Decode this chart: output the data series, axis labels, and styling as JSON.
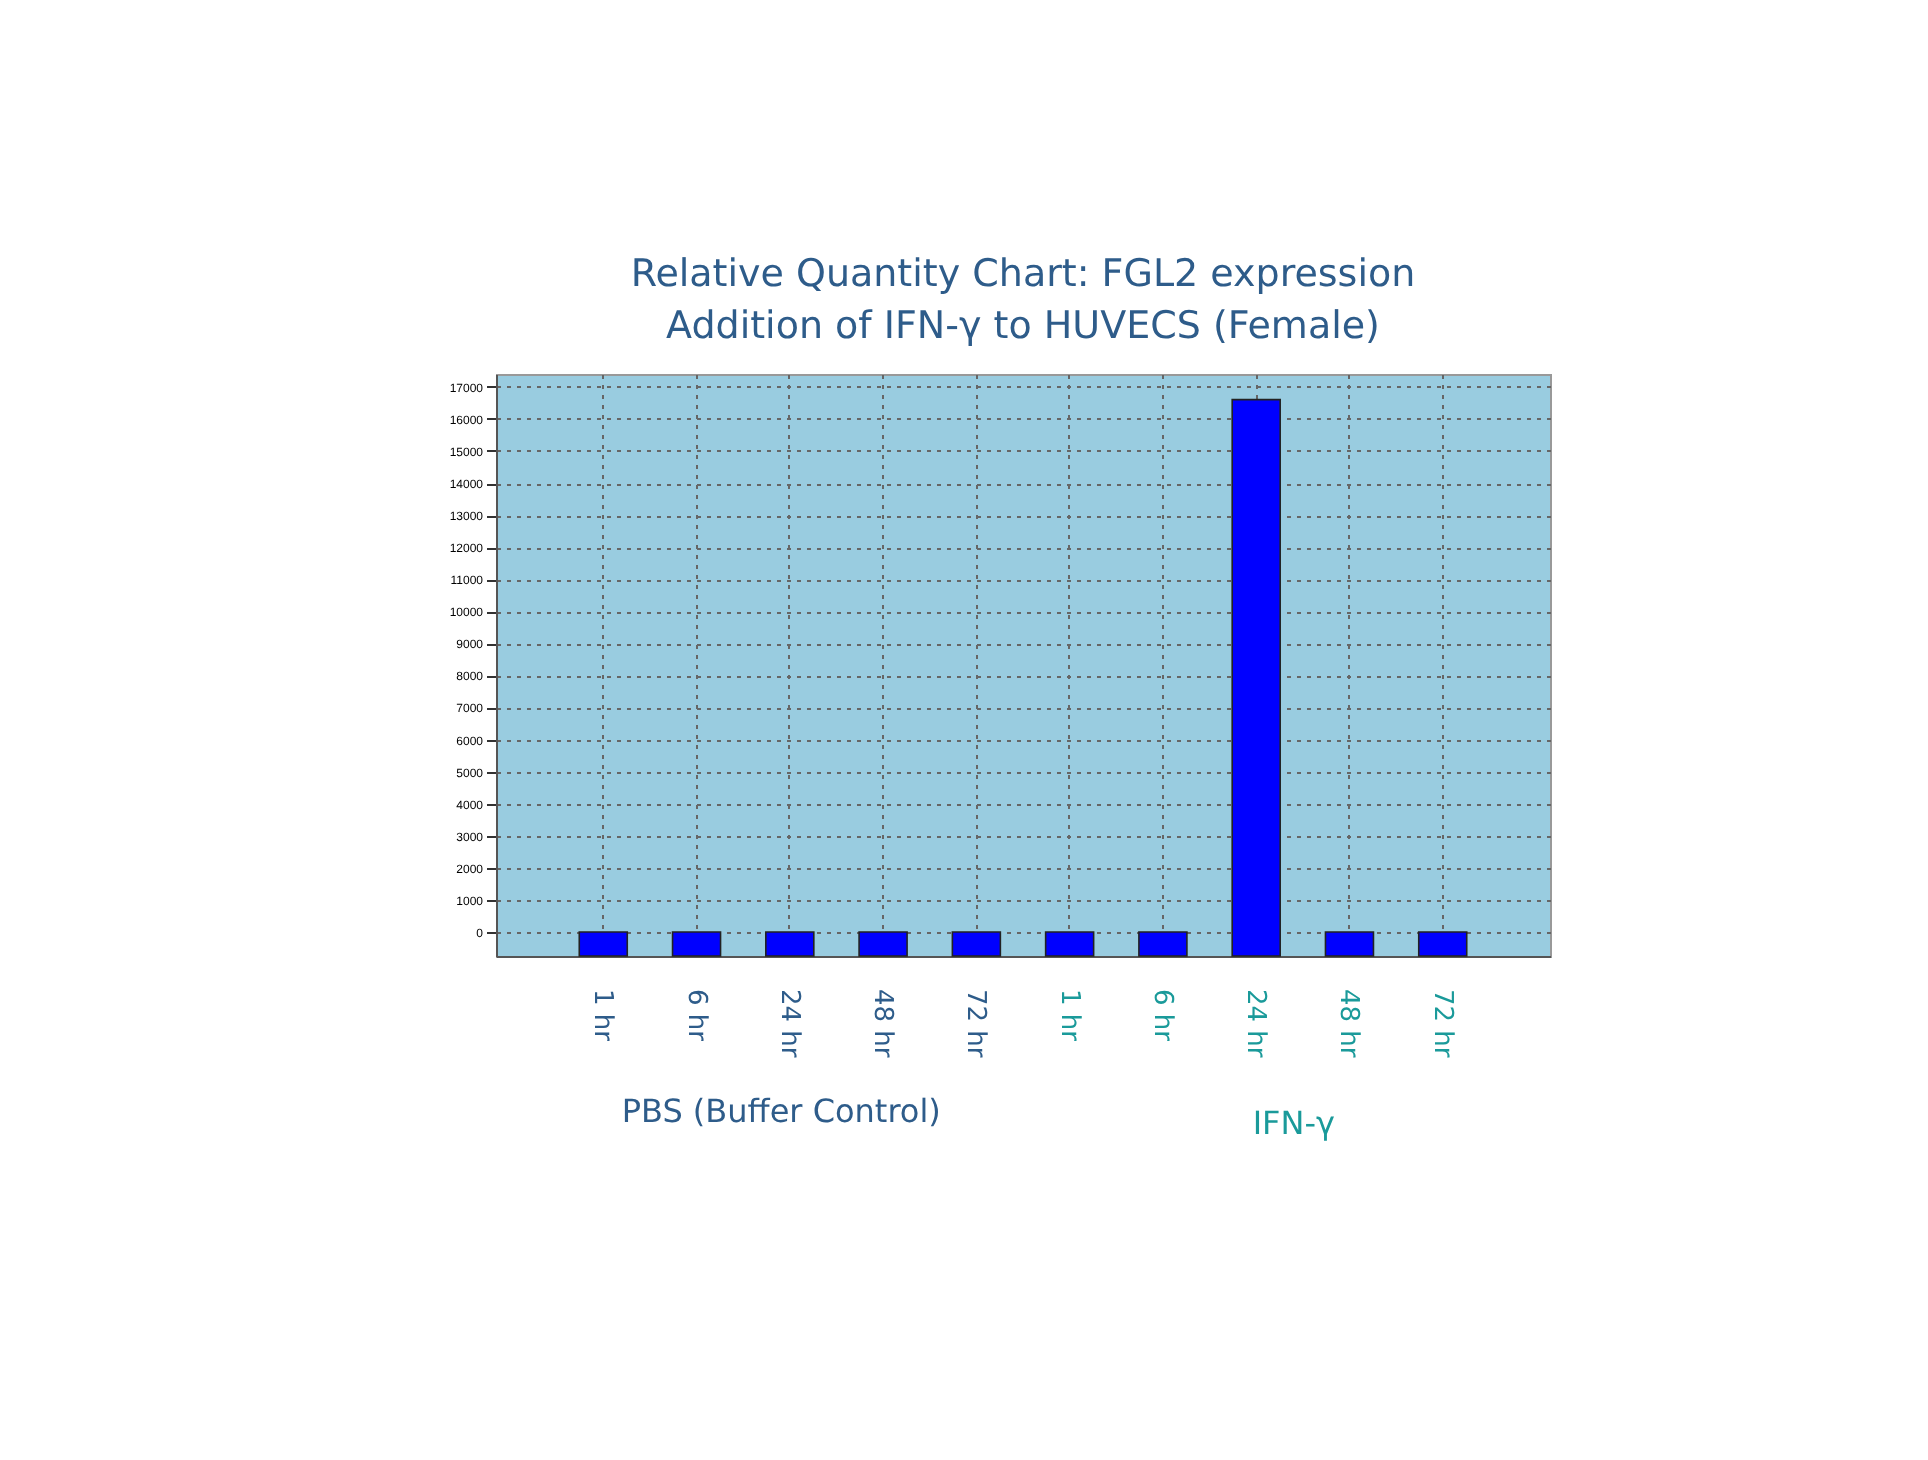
{
  "chart_data": {
    "type": "bar",
    "title": [
      "Relative Quantity Chart:  FGL2 expression",
      "Addition of IFN-γ to HUVECS (Female)"
    ],
    "categories": [
      "1 hr",
      "6 hr",
      "24 hr",
      "48 hr",
      "72 hr",
      "1 hr",
      "6 hr",
      "24 hr",
      "48 hr",
      "72 hr"
    ],
    "values": [
      750,
      750,
      750,
      750,
      750,
      750,
      750,
      17350,
      750,
      750
    ],
    "base": [
      -750,
      -750,
      -750,
      -750,
      -750,
      -750,
      -750,
      -750,
      -750,
      -750
    ],
    "color": "#0000ff",
    "ylim": [
      -750,
      17400
    ],
    "yticks": [
      0,
      1000,
      2000,
      3000,
      4000,
      5000,
      6000,
      7000,
      8000,
      9000,
      10000,
      11000,
      12000,
      13000,
      14000,
      15000,
      16000,
      17000
    ],
    "grid": true,
    "annotations": [
      "PBS (Buffer Control)",
      "IFN-γ"
    ]
  }
}
